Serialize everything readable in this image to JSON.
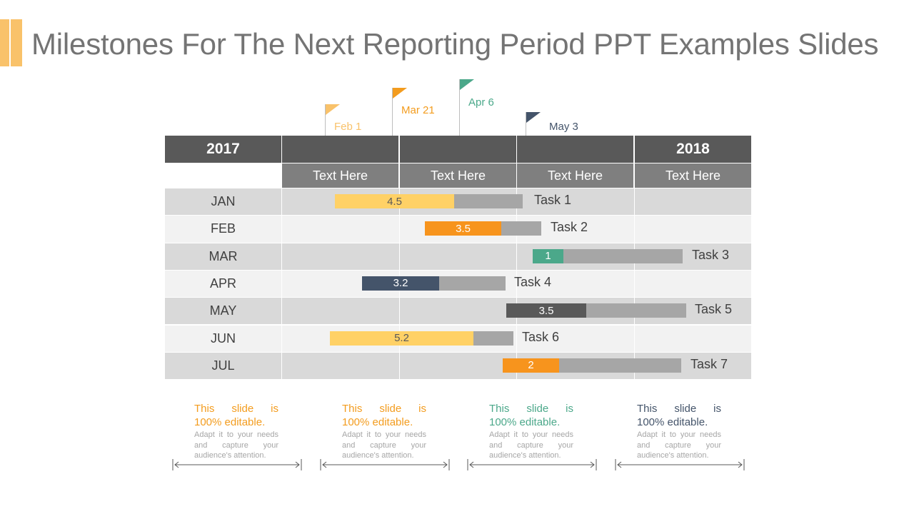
{
  "page": {
    "title": "Milestones For The Next Reporting Period PPT Examples Slides"
  },
  "milestones": [
    {
      "label": "Feb 1",
      "color": "#F9C26A"
    },
    {
      "label": "Mar 21",
      "color": "#F39C1E"
    },
    {
      "label": "Apr 6",
      "color": "#4BA88A"
    },
    {
      "label": "May 3",
      "color": "#44546A"
    }
  ],
  "table": {
    "year_left": "2017",
    "year_right": "2018",
    "columns": [
      "Text Here",
      "Text Here",
      "Text Here",
      "Text Here"
    ],
    "rows": [
      "JAN",
      "FEB",
      "MAR",
      "APR",
      "MAY",
      "JUN",
      "JUL"
    ]
  },
  "chart_data": {
    "type": "bar",
    "orientation": "horizontal",
    "categories": [
      "JAN",
      "FEB",
      "MAR",
      "APR",
      "MAY",
      "JUN",
      "JUL"
    ],
    "series": [
      {
        "name": "Task 1",
        "value": 4.5,
        "value_label": "4.5",
        "color": "#FFD166",
        "text_color": "#595959"
      },
      {
        "name": "Task 2",
        "value": 3.5,
        "value_label": "3.5",
        "color": "#F7941D",
        "text_color": "#ffffff"
      },
      {
        "name": "Task 3",
        "value": 1,
        "value_label": "1",
        "color": "#4BA88A",
        "text_color": "#ffffff"
      },
      {
        "name": "Task 4",
        "value": 3.2,
        "value_label": "3.2",
        "color": "#44546A",
        "text_color": "#ffffff"
      },
      {
        "name": "Task 5",
        "value": 3.5,
        "value_label": "3.5",
        "color": "#595959",
        "text_color": "#ffffff"
      },
      {
        "name": "Task 6",
        "value": 5.2,
        "value_label": "5.2",
        "color": "#FFD166",
        "text_color": "#595959"
      },
      {
        "name": "Task 7",
        "value": 2,
        "value_label": "2",
        "color": "#F7941D",
        "text_color": "#ffffff"
      }
    ],
    "remainder_color": "#A6A6A6"
  },
  "notes": [
    {
      "title": "This slide is 100% editable.",
      "body": "Adapt it to your needs and capture your audience's attention.",
      "color": "#F39C1E"
    },
    {
      "title": "This slide is 100% editable.",
      "body": "Adapt it to your needs and capture your audience's attention.",
      "color": "#F39C1E"
    },
    {
      "title": "This slide is 100% editable.",
      "body": "Adapt it to your needs and capture your audience's attention.",
      "color": "#4BA88A"
    },
    {
      "title": "This slide is 100% editable.",
      "body": "Adapt it to your needs and capture your audience's attention.",
      "color": "#44546A"
    }
  ]
}
